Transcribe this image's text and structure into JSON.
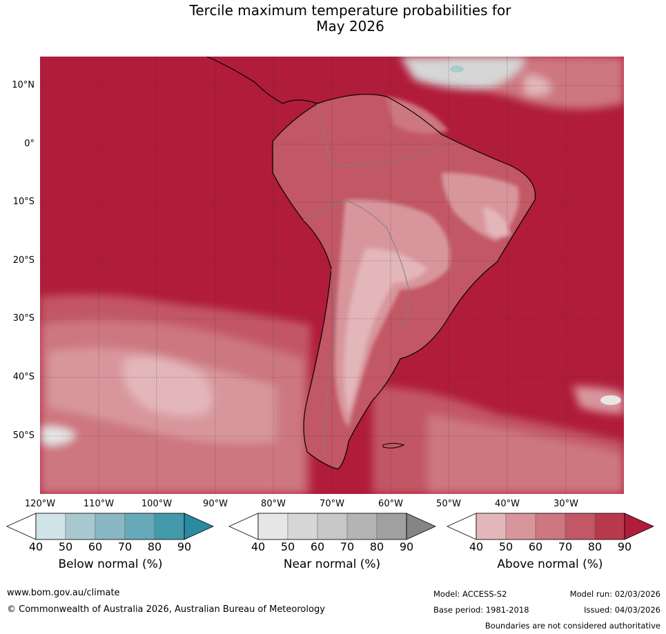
{
  "title_line1": "Tercile maximum temperature probabilities for",
  "title_line2": "May 2026",
  "latitude_labels": [
    "10°N",
    "0°",
    "10°S",
    "20°S",
    "30°S",
    "40°S",
    "50°S"
  ],
  "longitude_labels": [
    "120°W",
    "110°W",
    "100°W",
    "90°W",
    "80°W",
    "70°W",
    "60°W",
    "50°W",
    "40°W",
    "30°W"
  ],
  "colorbars": [
    {
      "label": "Below normal (%)",
      "ticks": [
        "40",
        "50",
        "60",
        "70",
        "80",
        "90"
      ],
      "colors": [
        "#ffffff",
        "#cfe3e8",
        "#a8c9d0",
        "#89b8c4",
        "#67a9b8",
        "#4499ab",
        "#2a8aa0"
      ]
    },
    {
      "label": "Near normal (%)",
      "ticks": [
        "40",
        "50",
        "60",
        "70",
        "80",
        "90"
      ],
      "colors": [
        "#ffffff",
        "#e6e6e6",
        "#d6d6d6",
        "#c7c7c7",
        "#b4b4b4",
        "#a0a0a0",
        "#858585"
      ]
    },
    {
      "label": "Above normal (%)",
      "ticks": [
        "40",
        "50",
        "60",
        "70",
        "80",
        "90"
      ],
      "colors": [
        "#ffffff",
        "#e3b6ba",
        "#d8969c",
        "#cd7780",
        "#c25765",
        "#b8384c",
        "#b01c3a"
      ]
    }
  ],
  "footer": {
    "website": "www.bom.gov.au/climate",
    "copyright": "© Commonwealth of Australia 2026, Australian Bureau of Meteorology",
    "model": "Model: ACCESS-S2",
    "model_run": "Model run: 02/03/2026",
    "base_period": "Base period: 1981-2018",
    "issued": "Issued: 04/03/2026",
    "disclaimer": "Boundaries are not considered authoritative"
  },
  "map_colors": {
    "ocean_high": "#b01c3a",
    "land_mid": "#c25765",
    "land_low": "#d8969c",
    "land_lighter": "#e3b6ba",
    "near_normal": "#d6d6d6",
    "below_normal": "#a8c9d0"
  }
}
